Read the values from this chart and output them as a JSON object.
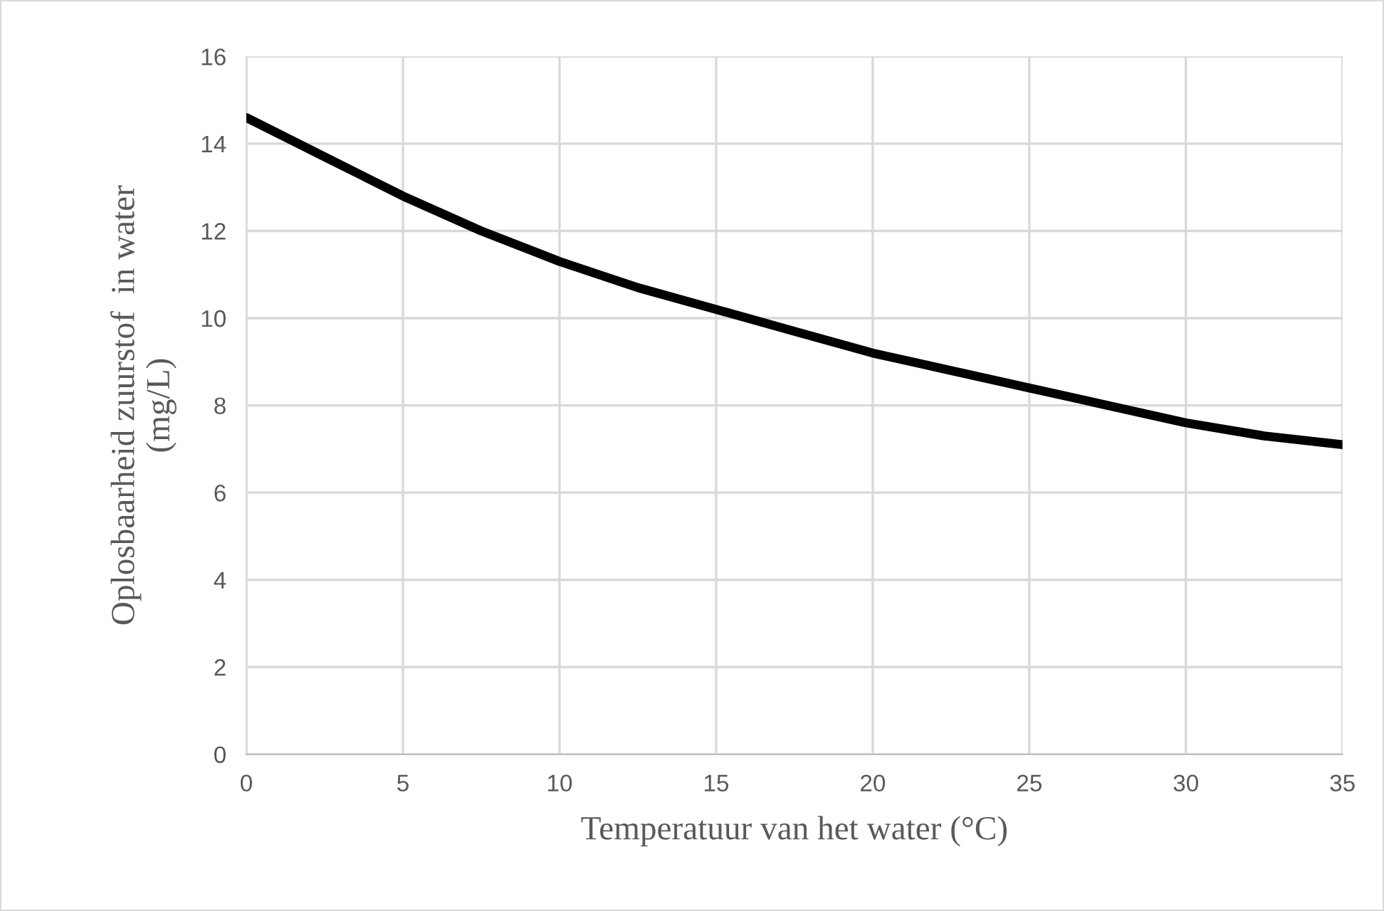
{
  "chart_data": {
    "type": "line",
    "xlabel": "Temperatuur van het water (°C)",
    "ylabel": "Oplosbaarheid zuurstof  in water\n(mg/L)",
    "x": [
      0,
      2.5,
      5,
      7.5,
      10,
      12.5,
      15,
      17.5,
      20,
      22.5,
      25,
      27.5,
      30,
      32.5,
      35
    ],
    "series": [
      {
        "color": "#000000",
        "values": [
          14.6,
          13.7,
          12.8,
          12.0,
          11.3,
          10.7,
          10.2,
          9.7,
          9.2,
          8.8,
          8.4,
          8.0,
          7.6,
          7.3,
          7.1
        ]
      }
    ],
    "xlim": [
      0,
      35
    ],
    "xticks": [
      0,
      5,
      10,
      15,
      20,
      25,
      30,
      35
    ],
    "ylim": [
      0,
      16
    ],
    "yticks": [
      0,
      2,
      4,
      6,
      8,
      10,
      12,
      14,
      16
    ],
    "grid": true,
    "marker": "none",
    "line_style": "solid"
  }
}
